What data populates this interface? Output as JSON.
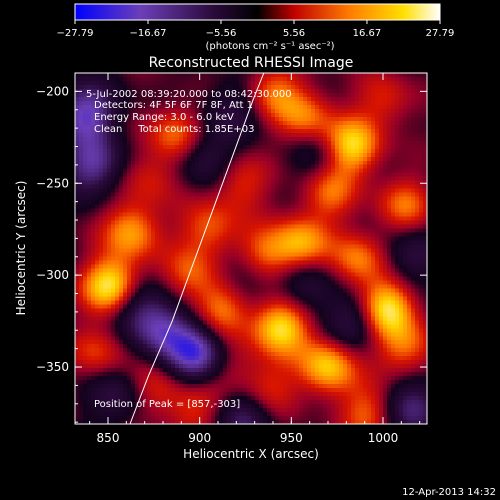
{
  "chart_data": {
    "type": "heatmap",
    "title": "Reconstructed RHESSI Image",
    "xlabel": "Heliocentric X (arcsec)",
    "ylabel": "Heliocentric Y (arcsec)",
    "xlim": [
      832,
      1024
    ],
    "ylim": [
      -381,
      -190
    ],
    "x_ticks": [
      850,
      900,
      950,
      1000
    ],
    "y_ticks": [
      -200,
      -250,
      -300,
      -350
    ],
    "x_tick_labels": [
      "850",
      "900",
      "950",
      "1000"
    ],
    "y_tick_labels": [
      "−200",
      "−250",
      "−300",
      "−350"
    ],
    "colorbar": {
      "range": [
        -27.79,
        27.79
      ],
      "ticks": [
        -27.79,
        -16.67,
        -5.56,
        5.56,
        16.67,
        27.79
      ],
      "tick_labels": [
        "−27.79",
        "−16.67",
        "−5.56",
        "5.56",
        "16.67",
        "27.79"
      ],
      "unit_label": "(photons cm⁻² s⁻¹ asec⁻²)",
      "colormap": [
        "#0000ff",
        "#6b3fb8",
        "#2a0a3a",
        "#000000",
        "#c00000",
        "#ff7a00",
        "#ffe000",
        "#ffffff"
      ]
    },
    "annotations": [
      "5-Jul-2002 08:39:20.000 to 08:42:30.000",
      "Detectors: 4F 5F 6F 7F 8F, Att 1",
      "Energy Range: 3.0 - 6.0 keV",
      "Clean     Total counts: 1.85E+03"
    ],
    "peak_label": "Position of Peak = [857,-303]",
    "peak": [
      857,
      -303
    ],
    "limb_curve": [
      [
        862,
        -381
      ],
      [
        872,
        -355
      ],
      [
        885,
        -325
      ],
      [
        896,
        -295
      ],
      [
        907,
        -265
      ],
      [
        918,
        -235
      ],
      [
        929,
        -205
      ],
      [
        935,
        -190
      ]
    ],
    "sources": [
      {
        "x": 852,
        "y": -306,
        "v": 24
      },
      {
        "x": 863,
        "y": -276,
        "v": 16
      },
      {
        "x": 845,
        "y": -342,
        "v": 10
      },
      {
        "x": 873,
        "y": -247,
        "v": 8
      },
      {
        "x": 887,
        "y": -223,
        "v": 13
      },
      {
        "x": 876,
        "y": -362,
        "v": 9
      },
      {
        "x": 895,
        "y": -300,
        "v": 11
      },
      {
        "x": 905,
        "y": -275,
        "v": 12
      },
      {
        "x": 912,
        "y": -318,
        "v": 14
      },
      {
        "x": 897,
        "y": -373,
        "v": 9
      },
      {
        "x": 922,
        "y": -250,
        "v": 10
      },
      {
        "x": 935,
        "y": -290,
        "v": 14
      },
      {
        "x": 944,
        "y": -328,
        "v": 22
      },
      {
        "x": 955,
        "y": -283,
        "v": 16
      },
      {
        "x": 958,
        "y": -214,
        "v": 13
      },
      {
        "x": 940,
        "y": -200,
        "v": 12
      },
      {
        "x": 983,
        "y": -230,
        "v": 20
      },
      {
        "x": 971,
        "y": -255,
        "v": 12
      },
      {
        "x": 986,
        "y": -292,
        "v": 14
      },
      {
        "x": 970,
        "y": -350,
        "v": 19
      },
      {
        "x": 1002,
        "y": -318,
        "v": 22
      },
      {
        "x": 1012,
        "y": -262,
        "v": 12
      },
      {
        "x": 1012,
        "y": -340,
        "v": 13
      },
      {
        "x": 1001,
        "y": -205,
        "v": 9
      },
      {
        "x": 937,
        "y": -362,
        "v": 10
      },
      {
        "x": 992,
        "y": -375,
        "v": 12
      },
      {
        "x": 916,
        "y": -350,
        "v": 6
      },
      {
        "x": 838,
        "y": -212,
        "v": -20
      },
      {
        "x": 842,
        "y": -240,
        "v": -17
      },
      {
        "x": 880,
        "y": -330,
        "v": -16
      },
      {
        "x": 866,
        "y": -317,
        "v": -12
      },
      {
        "x": 898,
        "y": -343,
        "v": -22
      },
      {
        "x": 903,
        "y": -236,
        "v": -10
      },
      {
        "x": 925,
        "y": -301,
        "v": -9
      },
      {
        "x": 925,
        "y": -377,
        "v": -12
      },
      {
        "x": 958,
        "y": -306,
        "v": -10
      },
      {
        "x": 985,
        "y": -325,
        "v": -11
      },
      {
        "x": 1015,
        "y": -290,
        "v": -9
      },
      {
        "x": 1017,
        "y": -372,
        "v": -14
      },
      {
        "x": 965,
        "y": -235,
        "v": -7
      },
      {
        "x": 918,
        "y": -210,
        "v": -8
      },
      {
        "x": 855,
        "y": -365,
        "v": -9
      }
    ]
  },
  "footer": {
    "timestamp": "12-Apr-2013 14:32"
  }
}
